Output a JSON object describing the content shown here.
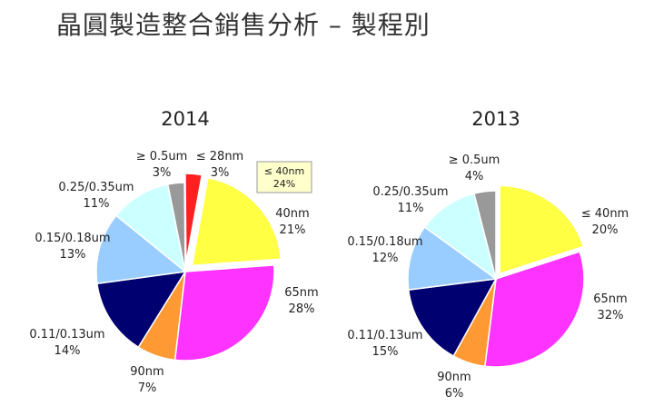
{
  "title": "晶圓製造整合銷售分析 – 製程別",
  "chart_data": [
    {
      "type": "pie",
      "title": "2014",
      "slices": [
        {
          "label": "≤ 28nm",
          "value": 3,
          "pct": "3%",
          "color": "#ff2020"
        },
        {
          "label": "40nm",
          "value": 21,
          "pct": "21%",
          "color": "#ffff44"
        },
        {
          "label": "65nm",
          "value": 28,
          "pct": "28%",
          "color": "#ff33ff"
        },
        {
          "label": "90nm",
          "value": 7,
          "pct": "7%",
          "color": "#ff9933"
        },
        {
          "label": "0.11/0.13um",
          "value": 14,
          "pct": "14%",
          "color": "#000070"
        },
        {
          "label": "0.15/0.18um",
          "value": 13,
          "pct": "13%",
          "color": "#99ccff"
        },
        {
          "label": "0.25/0.35um",
          "value": 11,
          "pct": "11%",
          "color": "#ccffff"
        },
        {
          "label": "≥ 0.5um",
          "value": 3,
          "pct": "3%",
          "color": "#999999"
        }
      ],
      "exploded": [
        "≤ 28nm",
        "40nm"
      ],
      "callout": {
        "label": "≤ 40nm",
        "pct": "24%"
      }
    },
    {
      "type": "pie",
      "title": "2013",
      "slices": [
        {
          "label": "≤ 40nm",
          "value": 20,
          "pct": "20%",
          "color": "#ffff44"
        },
        {
          "label": "65nm",
          "value": 32,
          "pct": "32%",
          "color": "#ff33ff"
        },
        {
          "label": "90nm",
          "value": 6,
          "pct": "6%",
          "color": "#ff9933"
        },
        {
          "label": "0.11/0.13um",
          "value": 15,
          "pct": "15%",
          "color": "#000070"
        },
        {
          "label": "0.15/0.18um",
          "value": 12,
          "pct": "12%",
          "color": "#99ccff"
        },
        {
          "label": "0.25/0.35um",
          "value": 11,
          "pct": "11%",
          "color": "#ccffff"
        },
        {
          "label": "≥ 0.5um",
          "value": 4,
          "pct": "4%",
          "color": "#999999"
        }
      ],
      "exploded": [
        "≤ 40nm"
      ]
    }
  ]
}
